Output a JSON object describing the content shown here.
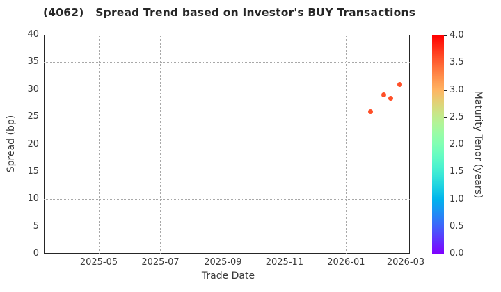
{
  "chart_data": {
    "type": "scatter",
    "title": "(4062)   Spread Trend based on Investor's BUY Transactions",
    "xlabel": "Trade Date",
    "ylabel": "Spread (bp)",
    "ylim": [
      0,
      40
    ],
    "yticks": [
      0,
      5,
      10,
      15,
      20,
      25,
      30,
      35,
      40
    ],
    "xticks": [
      {
        "label": "2025-05",
        "date": "2025-05-01"
      },
      {
        "label": "2025-07",
        "date": "2025-07-01"
      },
      {
        "label": "2025-09",
        "date": "2025-09-01"
      },
      {
        "label": "2025-11",
        "date": "2025-11-01"
      },
      {
        "label": "2026-01",
        "date": "2026-01-01"
      },
      {
        "label": "2026-03",
        "date": "2026-03-01"
      }
    ],
    "xlim": [
      "2025-03-07",
      "2026-03-05"
    ],
    "grid": true,
    "legend_position": "none",
    "points": [
      {
        "date": "2026-01-25",
        "spread_bp": 26.0,
        "tenor_years": 3.6
      },
      {
        "date": "2026-02-07",
        "spread_bp": 29.0,
        "tenor_years": 3.6
      },
      {
        "date": "2026-02-14",
        "spread_bp": 28.4,
        "tenor_years": 3.6
      },
      {
        "date": "2026-02-23",
        "spread_bp": 30.9,
        "tenor_years": 3.6
      }
    ],
    "colorbar": {
      "label": "Maturity Tenor (years)",
      "min": 0.0,
      "max": 4.0,
      "ticks": [
        0.0,
        0.5,
        1.0,
        1.5,
        2.0,
        2.5,
        3.0,
        3.5,
        4.0
      ],
      "colormap": "rainbow"
    },
    "colors": {
      "marker": "#ff4f28",
      "text": "#3a3a3a",
      "grid": "#a8a8a8",
      "spine": "#262626",
      "background": "#ffffff"
    }
  }
}
